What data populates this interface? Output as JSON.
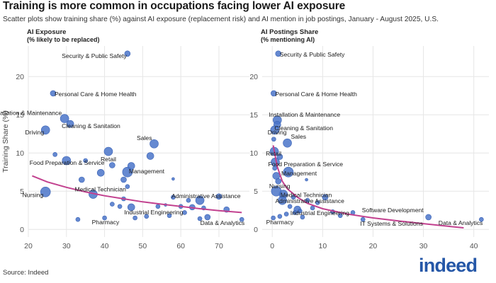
{
  "header": {
    "title": "Training is more common in occupations facing lower AI exposure",
    "subtitle": "Scatter plots show training share (%) against AI exposure (replacement risk) and AI mention in job postings, January - August 2025, U.S."
  },
  "footer": {
    "source": "Source: Indeed",
    "logo_text": "indeed"
  },
  "colors": {
    "point": "#4a74c9",
    "trend": "#c2418f",
    "grid": "#e6e6e6",
    "logo": "#2557a7"
  },
  "chart_data": [
    {
      "type": "scatter",
      "title": "AI Exposure",
      "subtitle": "(% likely to be replaced)",
      "ylabel": "Training Share (%)",
      "xlim": [
        20,
        78
      ],
      "ylim": [
        -1,
        24
      ],
      "xticks": [
        20,
        30,
        40,
        50,
        60,
        70
      ],
      "yticks": [
        0,
        5,
        10,
        15,
        20
      ],
      "grid": true,
      "trend": [
        [
          21,
          7.0
        ],
        [
          25,
          6.2
        ],
        [
          30,
          5.5
        ],
        [
          35,
          4.9
        ],
        [
          40,
          4.4
        ],
        [
          45,
          4.0
        ],
        [
          50,
          3.6
        ],
        [
          55,
          3.3
        ],
        [
          60,
          3.0
        ],
        [
          65,
          2.7
        ],
        [
          70,
          2.45
        ],
        [
          76,
          2.2
        ]
      ],
      "points": [
        {
          "x": 46,
          "y": 23.0,
          "s": 4,
          "label": "Security & Public Safety"
        },
        {
          "x": 26.5,
          "y": 17.8,
          "s": 4,
          "label": "Personal Care & Home Health"
        },
        {
          "x": 29.5,
          "y": 14.5,
          "s": 6,
          "label": "Installation & Maintenance"
        },
        {
          "x": 31,
          "y": 13.8,
          "s": 5,
          "label": "Cleaning & Sanitation"
        },
        {
          "x": 24.5,
          "y": 13.0,
          "s": 6,
          "label": "Driving"
        },
        {
          "x": 53,
          "y": 11.2,
          "s": 6,
          "label": "Sales"
        },
        {
          "x": 41,
          "y": 10.2,
          "s": 6,
          "label": "Retail"
        },
        {
          "x": 30,
          "y": 9.0,
          "s": 6,
          "label": "Food Preparation & Service"
        },
        {
          "x": 46,
          "y": 7.5,
          "s": 7,
          "label": "Management"
        },
        {
          "x": 37,
          "y": 4.6,
          "s": 6,
          "label": "Medical Technician"
        },
        {
          "x": 24.5,
          "y": 4.9,
          "s": 7,
          "label": "Nursing"
        },
        {
          "x": 65,
          "y": 3.8,
          "s": 6,
          "label": "Administrative Assistance"
        },
        {
          "x": 47,
          "y": 2.9,
          "s": 5,
          "label": "Industrial Engineering"
        },
        {
          "x": 40,
          "y": 1.5,
          "s": 3,
          "label": "Pharmacy"
        },
        {
          "x": 76,
          "y": 1.3,
          "s": 3,
          "label": "Data & Analytics"
        },
        {
          "x": 27,
          "y": 9.8,
          "s": 3
        },
        {
          "x": 35,
          "y": 9.0,
          "s": 3
        },
        {
          "x": 39,
          "y": 7.4,
          "s": 5
        },
        {
          "x": 42,
          "y": 8.4,
          "s": 4
        },
        {
          "x": 47,
          "y": 8.3,
          "s": 5
        },
        {
          "x": 52,
          "y": 9.6,
          "s": 5
        },
        {
          "x": 34,
          "y": 6.5,
          "s": 4
        },
        {
          "x": 45,
          "y": 6.5,
          "s": 4
        },
        {
          "x": 46,
          "y": 5.6,
          "s": 3
        },
        {
          "x": 58,
          "y": 6.6,
          "s": 2
        },
        {
          "x": 58,
          "y": 4.2,
          "s": 3
        },
        {
          "x": 62,
          "y": 3.8,
          "s": 3
        },
        {
          "x": 70,
          "y": 4.3,
          "s": 4
        },
        {
          "x": 54,
          "y": 3.0,
          "s": 3
        },
        {
          "x": 56,
          "y": 3.2,
          "s": 2
        },
        {
          "x": 60,
          "y": 3.0,
          "s": 3
        },
        {
          "x": 61,
          "y": 2.2,
          "s": 3
        },
        {
          "x": 63,
          "y": 2.9,
          "s": 4
        },
        {
          "x": 66,
          "y": 2.8,
          "s": 3
        },
        {
          "x": 72,
          "y": 2.6,
          "s": 4
        },
        {
          "x": 42,
          "y": 3.3,
          "s": 3
        },
        {
          "x": 44,
          "y": 3.0,
          "s": 3
        },
        {
          "x": 51,
          "y": 1.7,
          "s": 3
        },
        {
          "x": 57,
          "y": 1.8,
          "s": 3
        },
        {
          "x": 65,
          "y": 1.4,
          "s": 3
        },
        {
          "x": 67,
          "y": 1.6,
          "s": 4
        },
        {
          "x": 33,
          "y": 1.3,
          "s": 3
        },
        {
          "x": 45,
          "y": 4.0,
          "s": 3
        },
        {
          "x": 48,
          "y": 1.5,
          "s": 3
        }
      ]
    },
    {
      "type": "scatter",
      "title": "AI Postings Share",
      "subtitle": "(% mentioning AI)",
      "xlim": [
        -2,
        43
      ],
      "ylim": [
        -1,
        24
      ],
      "xticks": [
        0,
        10,
        20,
        30,
        40
      ],
      "yticks": [
        0,
        5,
        10,
        15,
        20
      ],
      "grid": true,
      "trend": [
        [
          0.2,
          11.0
        ],
        [
          1,
          8.2
        ],
        [
          2,
          6.3
        ],
        [
          3,
          5.3
        ],
        [
          5,
          4.2
        ],
        [
          7,
          3.4
        ],
        [
          10,
          2.7
        ],
        [
          15,
          2.0
        ],
        [
          20,
          1.5
        ],
        [
          25,
          1.1
        ],
        [
          30,
          0.75
        ],
        [
          35,
          0.4
        ],
        [
          38,
          0.2
        ]
      ],
      "points": [
        {
          "x": 1.2,
          "y": 23.0,
          "s": 4,
          "label": "Security & Public Safety"
        },
        {
          "x": 0.3,
          "y": 17.8,
          "s": 4,
          "label": "Personal Care & Home Health"
        },
        {
          "x": 1.0,
          "y": 14.3,
          "s": 6,
          "label": "Installation & Maintenance"
        },
        {
          "x": 1.0,
          "y": 13.7,
          "s": 5,
          "label": "Cleaning & Sanitation"
        },
        {
          "x": 0.5,
          "y": 13.0,
          "s": 6,
          "label": "Driving"
        },
        {
          "x": 3.0,
          "y": 11.3,
          "s": 6,
          "label": "Sales"
        },
        {
          "x": 0.4,
          "y": 10.2,
          "s": 6,
          "label": "Retail"
        },
        {
          "x": 0.6,
          "y": 8.8,
          "s": 6,
          "label": "Food Preparation & Service"
        },
        {
          "x": 3.2,
          "y": 7.5,
          "s": 7,
          "label": "Management"
        },
        {
          "x": 2.2,
          "y": 4.6,
          "s": 6,
          "label": "Medical Technician"
        },
        {
          "x": 0.8,
          "y": 5.0,
          "s": 7,
          "label": "Nursing"
        },
        {
          "x": 2.0,
          "y": 3.8,
          "s": 6,
          "label": "Administrative Assistance"
        },
        {
          "x": 5.0,
          "y": 2.6,
          "s": 5,
          "label": "Industrial Engineering"
        },
        {
          "x": 0.2,
          "y": 1.5,
          "s": 3,
          "label": "Pharmacy"
        },
        {
          "x": 31,
          "y": 1.6,
          "s": 4,
          "label": "Software Development"
        },
        {
          "x": 18,
          "y": 1.3,
          "s": 3,
          "label": "IT Systems & Solutions"
        },
        {
          "x": 41.5,
          "y": 1.3,
          "s": 3,
          "label": "Data & Analytics"
        },
        {
          "x": 0.3,
          "y": 11.8,
          "s": 3
        },
        {
          "x": 1.5,
          "y": 9.5,
          "s": 4
        },
        {
          "x": 0.8,
          "y": 7.0,
          "s": 5
        },
        {
          "x": 1.2,
          "y": 6.3,
          "s": 4
        },
        {
          "x": 6.8,
          "y": 6.5,
          "s": 2
        },
        {
          "x": 0.5,
          "y": 8.0,
          "s": 3
        },
        {
          "x": 4.2,
          "y": 4.2,
          "s": 3
        },
        {
          "x": 7.0,
          "y": 3.8,
          "s": 3
        },
        {
          "x": 9.0,
          "y": 3.5,
          "s": 3
        },
        {
          "x": 10.5,
          "y": 4.2,
          "s": 4
        },
        {
          "x": 4.5,
          "y": 2.2,
          "s": 3
        },
        {
          "x": 3.5,
          "y": 3.0,
          "s": 3
        },
        {
          "x": 5.5,
          "y": 2.4,
          "s": 3
        },
        {
          "x": 8.0,
          "y": 2.8,
          "s": 3
        },
        {
          "x": 2.8,
          "y": 2.0,
          "s": 3
        },
        {
          "x": 12.0,
          "y": 2.3,
          "s": 3
        },
        {
          "x": 13.5,
          "y": 1.8,
          "s": 3
        },
        {
          "x": 1.5,
          "y": 1.7,
          "s": 3
        },
        {
          "x": 6.0,
          "y": 1.6,
          "s": 3
        },
        {
          "x": 16.0,
          "y": 2.2,
          "s": 3
        }
      ]
    }
  ]
}
